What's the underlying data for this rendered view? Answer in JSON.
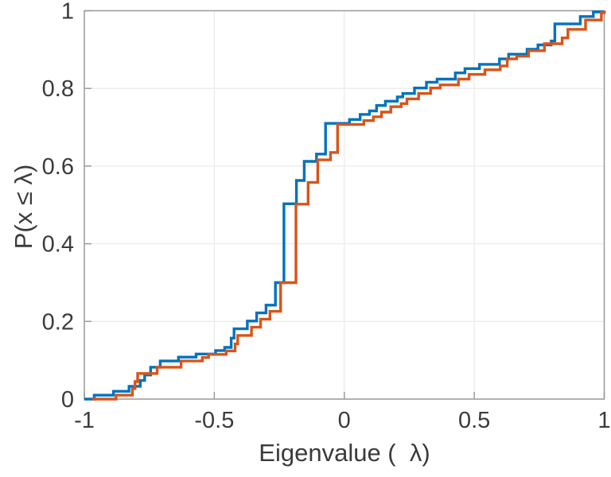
{
  "chart_data": {
    "type": "line",
    "subtype": "ecdf-stairs",
    "title": "",
    "xlabel": "Eigenvalue (  λ)",
    "ylabel": "P(x ≤ λ)",
    "xlim": [
      -1,
      1
    ],
    "ylim": [
      0,
      1
    ],
    "xticks": [
      -1,
      -0.5,
      0,
      0.5,
      1
    ],
    "xtick_labels": [
      "-1",
      "-0.5",
      "0",
      "0.5",
      "1"
    ],
    "yticks": [
      0,
      0.2,
      0.4,
      0.6,
      0.8,
      1
    ],
    "ytick_labels": [
      "0",
      "0.2",
      "0.4",
      "0.6",
      "0.8",
      "1"
    ],
    "grid": true,
    "legend": "none",
    "colors": {
      "axis_box": "#9b9b9b",
      "grid": "#ebebeb",
      "tick_label": "#3b3b3b",
      "series_blue": "#0072BD",
      "series_orange": "#D95319"
    },
    "series": [
      {
        "name": "ecdf-series-blue",
        "color": "#0072BD",
        "points": [
          [
            -1.0,
            0.0
          ],
          [
            -0.962,
            0.01
          ],
          [
            -0.888,
            0.02
          ],
          [
            -0.828,
            0.033
          ],
          [
            -0.785,
            0.048
          ],
          [
            -0.768,
            0.062
          ],
          [
            -0.745,
            0.082
          ],
          [
            -0.708,
            0.098
          ],
          [
            -0.638,
            0.108
          ],
          [
            -0.57,
            0.116
          ],
          [
            -0.495,
            0.125
          ],
          [
            -0.46,
            0.133
          ],
          [
            -0.435,
            0.157
          ],
          [
            -0.424,
            0.181
          ],
          [
            -0.373,
            0.201
          ],
          [
            -0.337,
            0.222
          ],
          [
            -0.301,
            0.242
          ],
          [
            -0.265,
            0.3
          ],
          [
            -0.232,
            0.503
          ],
          [
            -0.184,
            0.563
          ],
          [
            -0.154,
            0.612
          ],
          [
            -0.107,
            0.631
          ],
          [
            -0.072,
            0.71
          ],
          [
            0.02,
            0.72
          ],
          [
            0.061,
            0.733
          ],
          [
            0.097,
            0.742
          ],
          [
            0.124,
            0.756
          ],
          [
            0.158,
            0.767
          ],
          [
            0.204,
            0.778
          ],
          [
            0.225,
            0.787
          ],
          [
            0.27,
            0.801
          ],
          [
            0.316,
            0.816
          ],
          [
            0.357,
            0.824
          ],
          [
            0.427,
            0.84
          ],
          [
            0.464,
            0.851
          ],
          [
            0.52,
            0.862
          ],
          [
            0.597,
            0.876
          ],
          [
            0.632,
            0.888
          ],
          [
            0.703,
            0.901
          ],
          [
            0.745,
            0.912
          ],
          [
            0.796,
            0.922
          ],
          [
            0.81,
            0.966
          ],
          [
            0.908,
            0.985
          ],
          [
            0.958,
            0.997
          ],
          [
            1.0,
            1.0
          ]
        ]
      },
      {
        "name": "ecdf-series-orange",
        "color": "#D95319",
        "points": [
          [
            -0.97,
            0.0
          ],
          [
            -0.878,
            0.01
          ],
          [
            -0.815,
            0.027
          ],
          [
            -0.805,
            0.045
          ],
          [
            -0.795,
            0.066
          ],
          [
            -0.72,
            0.082
          ],
          [
            -0.628,
            0.098
          ],
          [
            -0.546,
            0.107
          ],
          [
            -0.522,
            0.115
          ],
          [
            -0.454,
            0.124
          ],
          [
            -0.42,
            0.142
          ],
          [
            -0.41,
            0.164
          ],
          [
            -0.357,
            0.185
          ],
          [
            -0.322,
            0.206
          ],
          [
            -0.286,
            0.226
          ],
          [
            -0.245,
            0.3
          ],
          [
            -0.186,
            0.502
          ],
          [
            -0.139,
            0.558
          ],
          [
            -0.102,
            0.616
          ],
          [
            -0.053,
            0.635
          ],
          [
            -0.026,
            0.707
          ],
          [
            0.075,
            0.717
          ],
          [
            0.112,
            0.727
          ],
          [
            0.143,
            0.739
          ],
          [
            0.179,
            0.753
          ],
          [
            0.219,
            0.761
          ],
          [
            0.241,
            0.773
          ],
          [
            0.286,
            0.787
          ],
          [
            0.332,
            0.801
          ],
          [
            0.369,
            0.809
          ],
          [
            0.439,
            0.824
          ],
          [
            0.48,
            0.836
          ],
          [
            0.541,
            0.848
          ],
          [
            0.6,
            0.858
          ],
          [
            0.627,
            0.876
          ],
          [
            0.663,
            0.883
          ],
          [
            0.709,
            0.897
          ],
          [
            0.77,
            0.915
          ],
          [
            0.838,
            0.93
          ],
          [
            0.86,
            0.952
          ],
          [
            0.928,
            0.976
          ],
          [
            0.989,
            0.995
          ],
          [
            1.0,
            1.0
          ]
        ]
      }
    ]
  }
}
